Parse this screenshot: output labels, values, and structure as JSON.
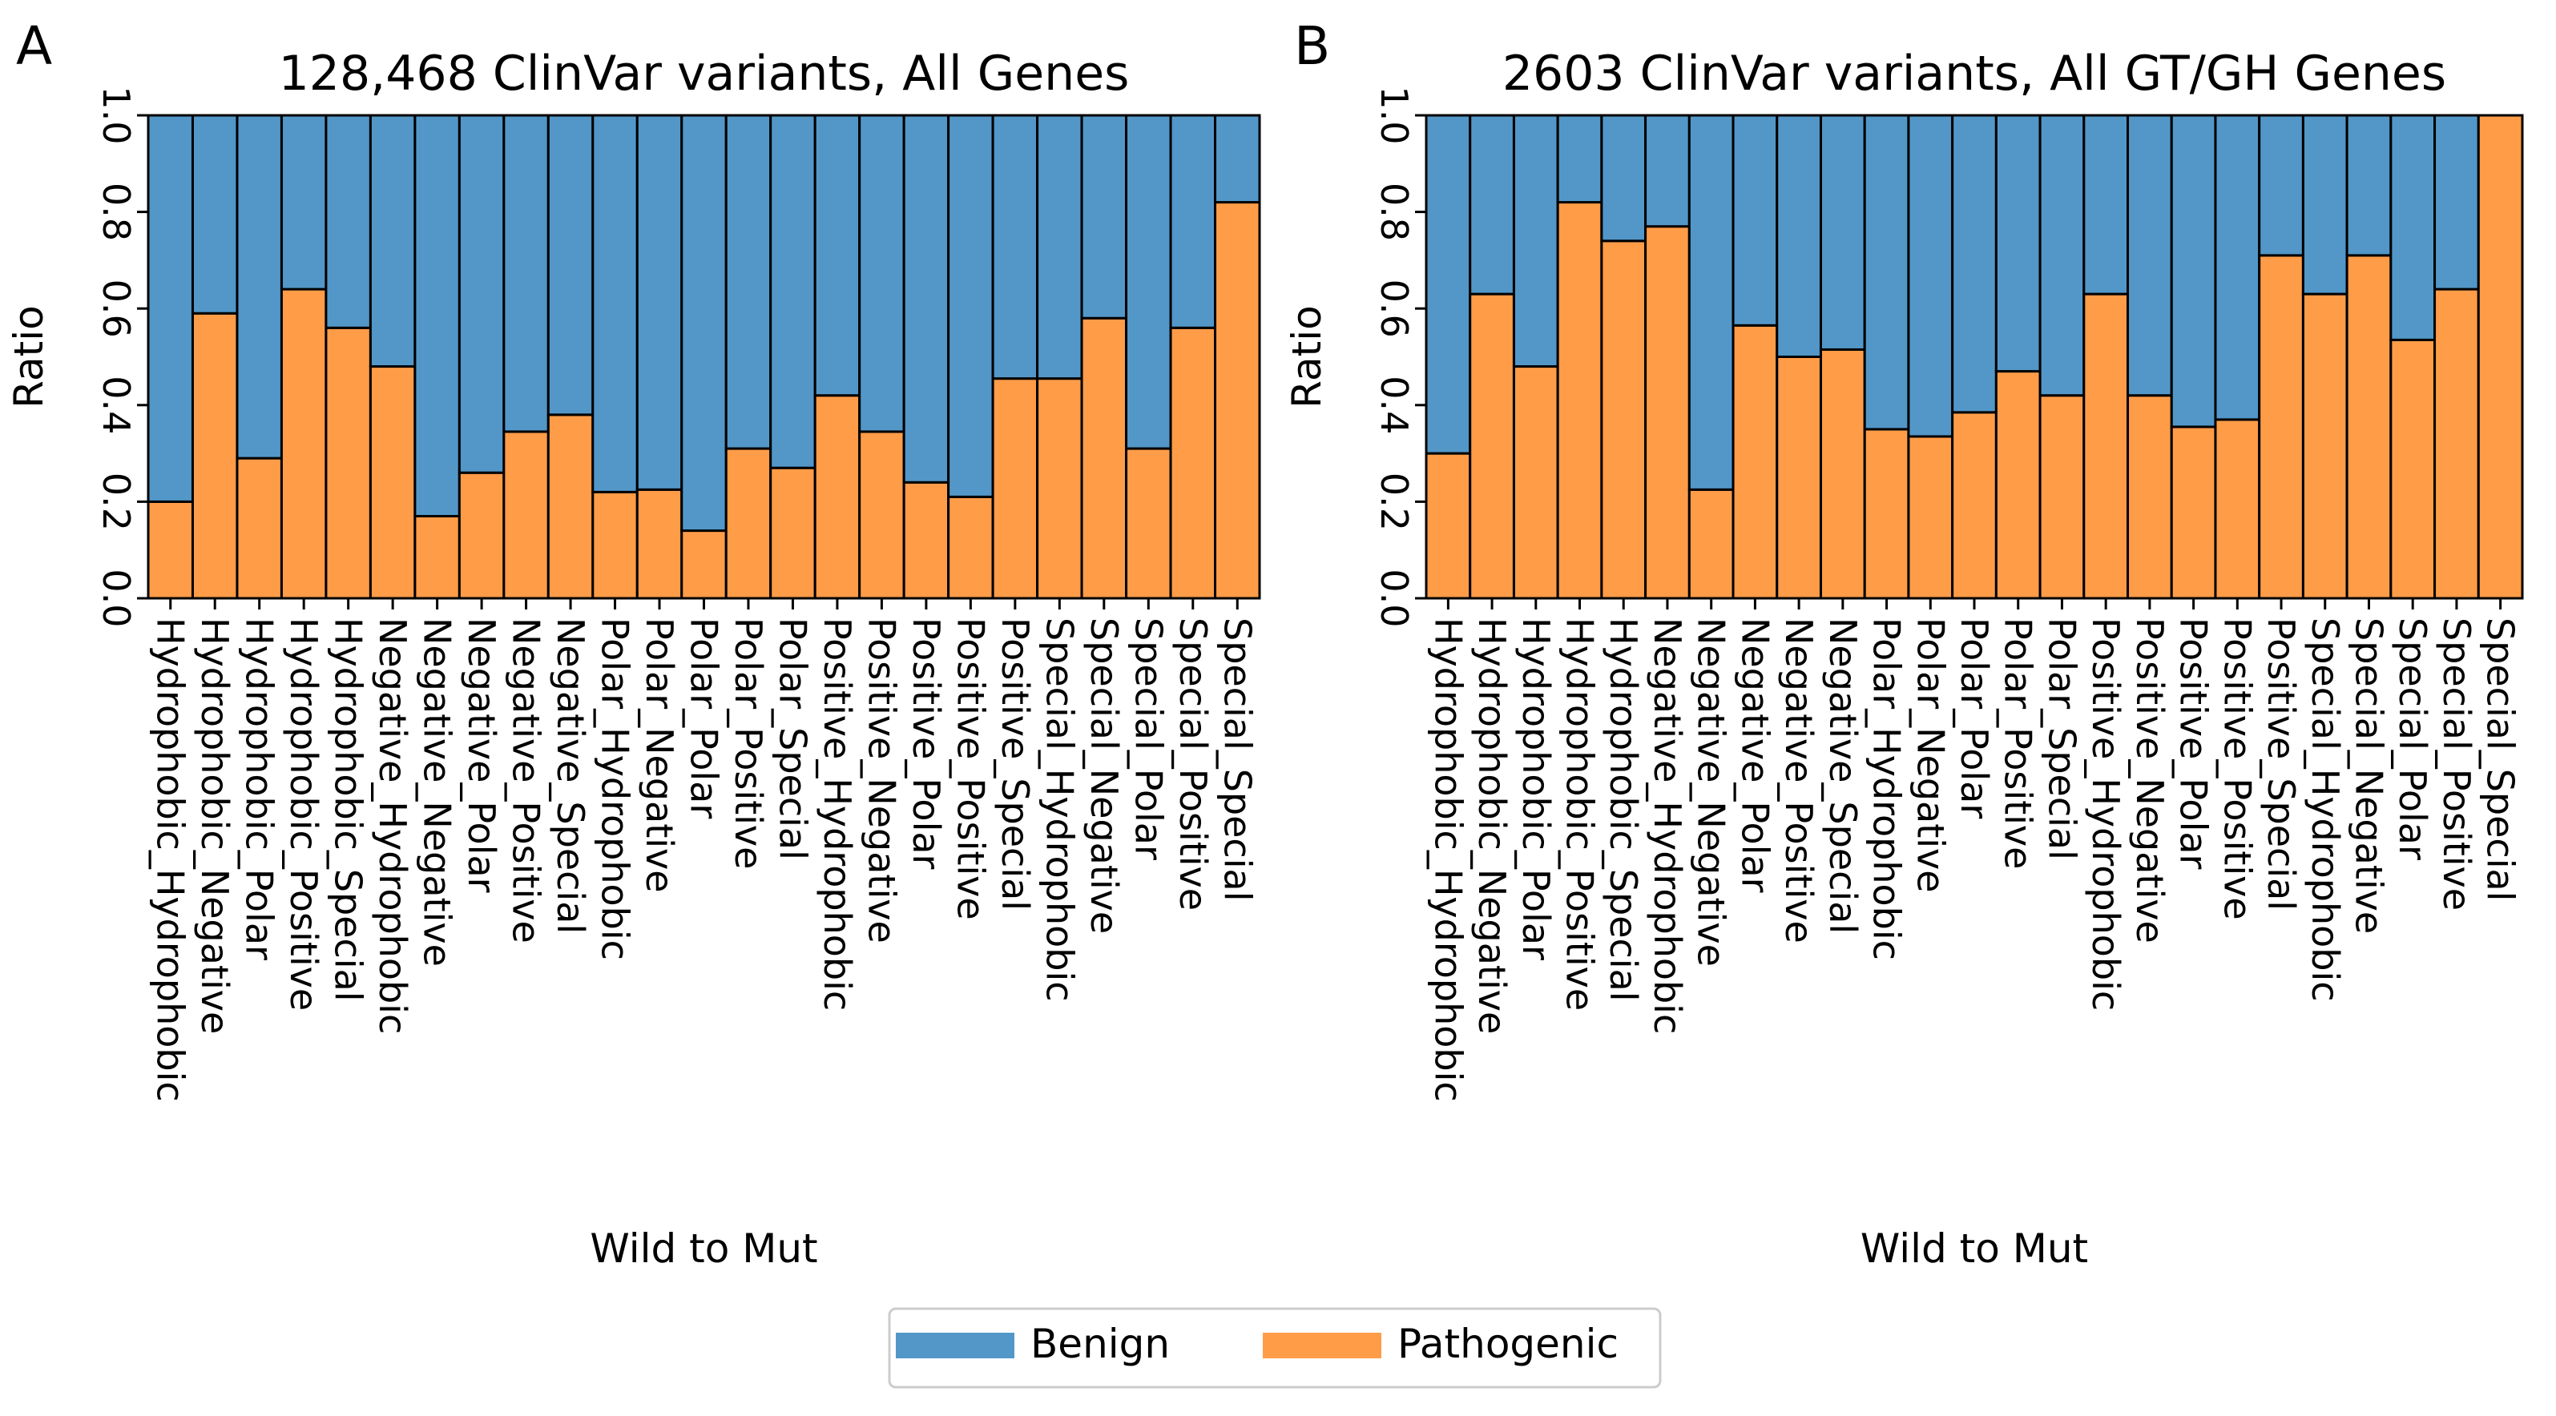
{
  "chart_data": [
    {
      "type": "bar",
      "stacked": true,
      "panel_label": "A",
      "title": "128,468 ClinVar variants, All Genes",
      "xlabel": "Wild to Mut",
      "ylabel": "Ratio",
      "ylim": [
        0,
        1
      ],
      "yticks": [
        "0.0",
        "0.2",
        "0.4",
        "0.6",
        "0.8",
        "1.0"
      ],
      "categories": [
        "Hydrophobic_Hydrophobic",
        "Hydrophobic_Negative",
        "Hydrophobic_Polar",
        "Hydrophobic_Positive",
        "Hydrophobic_Special",
        "Negative_Hydrophobic",
        "Negative_Negative",
        "Negative_Polar",
        "Negative_Positive",
        "Negative_Special",
        "Polar_Hydrophobic",
        "Polar_Negative",
        "Polar_Polar",
        "Polar_Positive",
        "Polar_Special",
        "Positive_Hydrophobic",
        "Positive_Negative",
        "Positive_Polar",
        "Positive_Positive",
        "Positive_Special",
        "Special_Hydrophobic",
        "Special_Negative",
        "Special_Polar",
        "Special_Positive",
        "Special_Special"
      ],
      "series": [
        {
          "name": "Pathogenic",
          "color": "#ff9c48",
          "values": [
            0.2,
            0.59,
            0.29,
            0.64,
            0.56,
            0.48,
            0.17,
            0.26,
            0.345,
            0.38,
            0.22,
            0.225,
            0.14,
            0.31,
            0.27,
            0.42,
            0.345,
            0.24,
            0.21,
            0.455,
            0.455,
            0.58,
            0.31,
            0.56,
            0.82
          ]
        },
        {
          "name": "Benign",
          "color": "#5297c8",
          "values": [
            0.8,
            0.41,
            0.71,
            0.36,
            0.44,
            0.52,
            0.83,
            0.74,
            0.655,
            0.62,
            0.78,
            0.775,
            0.86,
            0.69,
            0.73,
            0.58,
            0.655,
            0.76,
            0.79,
            0.545,
            0.545,
            0.42,
            0.69,
            0.44,
            0.18
          ]
        }
      ]
    },
    {
      "type": "bar",
      "stacked": true,
      "panel_label": "B",
      "title": "2603 ClinVar variants, All GT/GH Genes",
      "xlabel": "Wild to Mut",
      "ylabel": "Ratio",
      "ylim": [
        0,
        1
      ],
      "yticks": [
        "0.0",
        "0.2",
        "0.4",
        "0.6",
        "0.8",
        "1.0"
      ],
      "categories": [
        "Hydrophobic_Hydrophobic",
        "Hydrophobic_Negative",
        "Hydrophobic_Polar",
        "Hydrophobic_Positive",
        "Hydrophobic_Special",
        "Negative_Hydrophobic",
        "Negative_Negative",
        "Negative_Polar",
        "Negative_Positive",
        "Negative_Special",
        "Polar_Hydrophobic",
        "Polar_Negative",
        "Polar_Polar",
        "Polar_Positive",
        "Polar_Special",
        "Positive_Hydrophobic",
        "Positive_Negative",
        "Positive_Polar",
        "Positive_Positive",
        "Positive_Special",
        "Special_Hydrophobic",
        "Special_Negative",
        "Special_Polar",
        "Special_Positive",
        "Special_Special"
      ],
      "series": [
        {
          "name": "Pathogenic",
          "color": "#ff9c48",
          "values": [
            0.3,
            0.63,
            0.48,
            0.82,
            0.74,
            0.77,
            0.225,
            0.565,
            0.5,
            0.515,
            0.35,
            0.335,
            0.385,
            0.47,
            0.42,
            0.63,
            0.42,
            0.355,
            0.37,
            0.71,
            0.63,
            0.71,
            0.535,
            0.64,
            1.0
          ]
        },
        {
          "name": "Benign",
          "color": "#5297c8",
          "values": [
            0.7,
            0.37,
            0.52,
            0.18,
            0.26,
            0.23,
            0.775,
            0.435,
            0.5,
            0.485,
            0.65,
            0.665,
            0.615,
            0.53,
            0.58,
            0.37,
            0.58,
            0.645,
            0.63,
            0.29,
            0.37,
            0.29,
            0.465,
            0.36,
            0.0
          ]
        }
      ]
    }
  ],
  "legend": {
    "items": [
      {
        "label": "Benign",
        "color": "#5297c8"
      },
      {
        "label": "Pathogenic",
        "color": "#ff9c48"
      }
    ]
  }
}
